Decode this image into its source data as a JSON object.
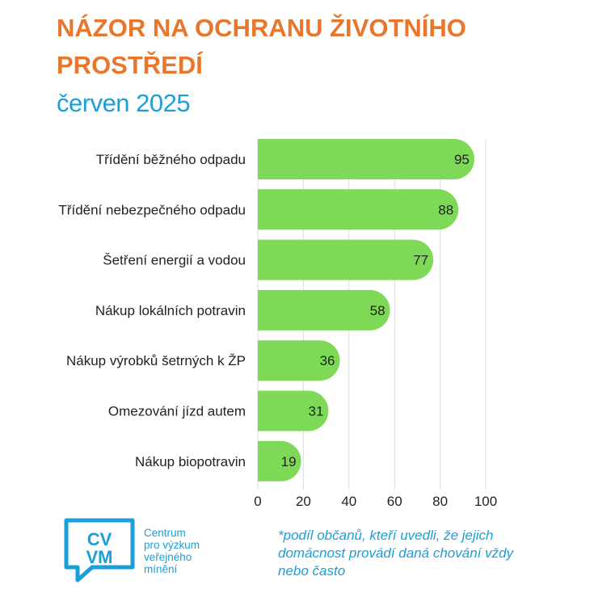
{
  "title": "NÁZOR NA OCHRANU ŽIVOTNÍHO PROSTŘEDÍ",
  "subtitle": "červen 2025",
  "footnote": "*podíl občanů, kteří uvedli, že jejich domácnost provádí daná chování vždy nebo často",
  "logo": {
    "lines": [
      "Centrum",
      "pro výzkum",
      "veřejného",
      "mínění"
    ],
    "icon": "cvvm-speech-bubble-logo"
  },
  "colors": {
    "title": "#e8762c",
    "accent": "#1a9fd9",
    "bar": "#7ed957",
    "grid": "#dddddd"
  },
  "chart_data": {
    "type": "bar",
    "orientation": "horizontal",
    "categories": [
      "Třídění běžného odpadu",
      "Třídění nebezpečného odpadu",
      "Šetření energií a vodou",
      "Nákup lokálních potravin",
      "Nákup výrobků šetrných k ŽP",
      "Omezování jízd autem",
      "Nákup biopotravin"
    ],
    "values": [
      95,
      88,
      77,
      58,
      36,
      31,
      19
    ],
    "xlim": [
      0,
      100
    ],
    "xticks": [
      0,
      20,
      40,
      60,
      80,
      100
    ],
    "grid": true,
    "data_labels": true
  }
}
